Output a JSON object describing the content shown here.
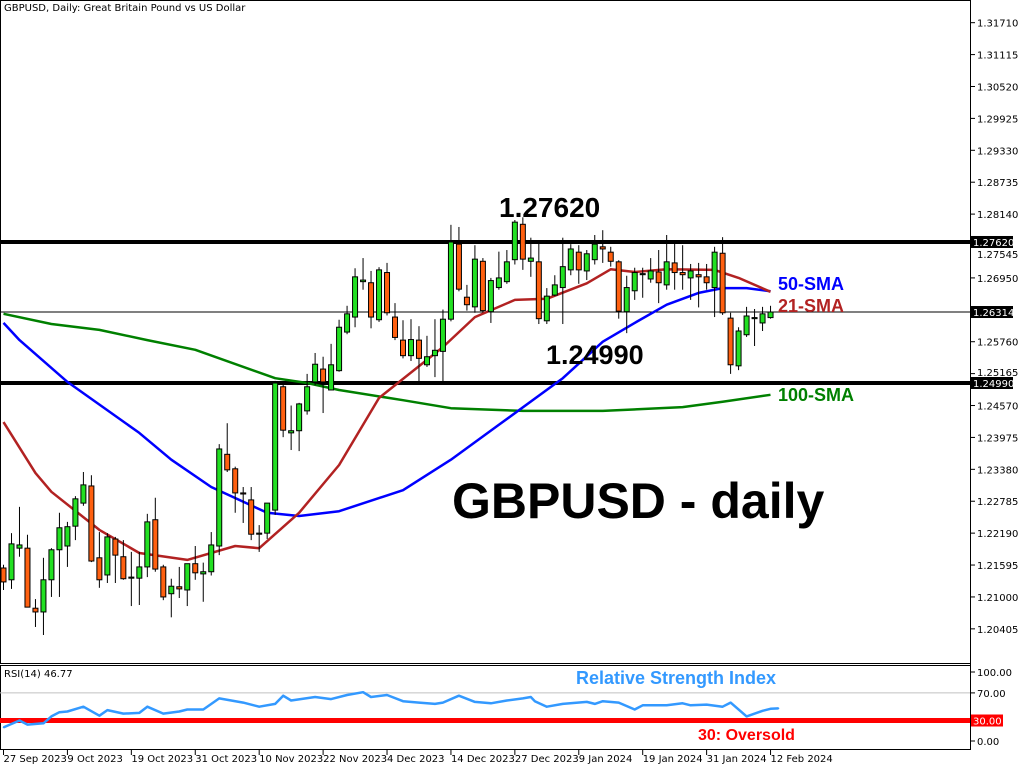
{
  "title": "GBPUSD, Daily:  Great Britain Pound vs US Dollar",
  "annotations": {
    "resistance_label": "1.27620",
    "support_label": "1.24990",
    "main_label": "GBPUSD - daily",
    "sma50_label": "50-SMA",
    "sma21_label": "21-SMA",
    "sma100_label": "100-SMA",
    "rsi_label": "Relative Strength Index",
    "oversold_label": "30: Oversold"
  },
  "colors": {
    "bull": "#22e022",
    "bear": "#ff6010",
    "sma50": "#0000ff",
    "sma21": "#b22222",
    "sma100": "#008000",
    "rsi": "#3399ff",
    "oversold": "#ff0000"
  },
  "chart_data": [
    {
      "type": "candlestick",
      "symbol": "GBPUSD",
      "timeframe": "Daily",
      "ylim": [
        1.1968,
        1.3205
      ],
      "yticks": [
        "1.31710",
        "1.31115",
        "1.30520",
        "1.29925",
        "1.29330",
        "1.28735",
        "1.28140",
        "1.27545",
        "1.26950",
        "1.25760",
        "1.25165",
        "1.24570",
        "1.23975",
        "1.23380",
        "1.22785",
        "1.22190",
        "1.21595",
        "1.21000",
        "1.20405"
      ],
      "highlighted_levels": [
        {
          "value": 1.2762,
          "label": "1.27620",
          "kind": "resistance"
        },
        {
          "value": 1.26314,
          "label": "1.26314",
          "kind": "current"
        },
        {
          "value": 1.2499,
          "label": "1.24990",
          "kind": "support"
        }
      ],
      "xticks": [
        {
          "bar": 0,
          "label": "27 Sep 2023"
        },
        {
          "bar": 8,
          "label": "9 Oct 2023"
        },
        {
          "bar": 16,
          "label": "19 Oct 2023"
        },
        {
          "bar": 24,
          "label": "31 Oct 2023"
        },
        {
          "bar": 32,
          "label": "10 Nov 2023"
        },
        {
          "bar": 40,
          "label": "22 Nov 2023"
        },
        {
          "bar": 48,
          "label": "4 Dec 2023"
        },
        {
          "bar": 56,
          "label": "14 Dec 2023"
        },
        {
          "bar": 64,
          "label": "27 Dec 2023"
        },
        {
          "bar": 72,
          "label": "9 Jan 2024"
        },
        {
          "bar": 80,
          "label": "19 Jan 2024"
        },
        {
          "bar": 88,
          "label": "31 Jan 2024"
        },
        {
          "bar": 96,
          "label": "12 Feb 2024"
        }
      ],
      "ohlc_fields": [
        "open",
        "high",
        "low",
        "close"
      ],
      "candles": [
        [
          1.2154,
          1.216,
          1.2113,
          1.2128
        ],
        [
          1.2132,
          1.2219,
          1.2115,
          1.2199
        ],
        [
          1.2191,
          1.2268,
          1.2175,
          1.2197
        ],
        [
          1.2191,
          1.2216,
          1.2081,
          1.2081
        ],
        [
          1.2079,
          1.2096,
          1.2044,
          1.2072
        ],
        [
          1.2072,
          1.2173,
          1.2029,
          1.2132
        ],
        [
          1.2132,
          1.2191,
          1.21,
          1.2188
        ],
        [
          1.2188,
          1.2257,
          1.21,
          1.2229
        ],
        [
          1.2195,
          1.224,
          1.2156,
          1.2231
        ],
        [
          1.2232,
          1.2288,
          1.2206,
          1.2283
        ],
        [
          1.2275,
          1.2333,
          1.227,
          1.2309
        ],
        [
          1.2307,
          1.2327,
          1.2165,
          1.2167
        ],
        [
          1.2173,
          1.2221,
          1.2117,
          1.2132
        ],
        [
          1.2141,
          1.2219,
          1.2126,
          1.2212
        ],
        [
          1.2208,
          1.2212,
          1.2126,
          1.2178
        ],
        [
          1.2175,
          1.2206,
          1.2132,
          1.2134
        ],
        [
          1.2135,
          1.2184,
          1.2083,
          1.2137
        ],
        [
          1.2135,
          1.2184,
          1.2085,
          1.2156
        ],
        [
          1.2156,
          1.2255,
          1.2137,
          1.224
        ],
        [
          1.2244,
          1.2285,
          1.2147,
          1.2152
        ],
        [
          1.2156,
          1.216,
          1.2094,
          1.21
        ],
        [
          1.2106,
          1.2134,
          1.2062,
          1.212
        ],
        [
          1.2119,
          1.2156,
          1.2098,
          1.2115
        ],
        [
          1.2113,
          1.2162,
          1.2083,
          1.2162
        ],
        [
          1.2162,
          1.2195,
          1.2132,
          1.2145
        ],
        [
          1.2143,
          1.2164,
          1.2091,
          1.2147
        ],
        [
          1.2147,
          1.2221,
          1.214,
          1.2197
        ],
        [
          1.2195,
          1.2385,
          1.2178,
          1.2376
        ],
        [
          1.2366,
          1.2424,
          1.2333,
          1.2337
        ],
        [
          1.2339,
          1.2343,
          1.2257,
          1.2294
        ],
        [
          1.2294,
          1.2305,
          1.2238,
          1.2292
        ],
        [
          1.2281,
          1.2305,
          1.2206,
          1.2217
        ],
        [
          1.2217,
          1.2234,
          1.2184,
          1.2219
        ],
        [
          1.2219,
          1.2275,
          1.2208,
          1.2275
        ],
        [
          1.2262,
          1.2503,
          1.2253,
          1.2499
        ],
        [
          1.2492,
          1.2499,
          1.2398,
          1.2411
        ],
        [
          1.2406,
          1.2457,
          1.2374,
          1.241
        ],
        [
          1.241,
          1.2462,
          1.2372,
          1.246
        ],
        [
          1.2447,
          1.2516,
          1.244,
          1.2492
        ],
        [
          1.2501,
          1.2555,
          1.2495,
          1.2534
        ],
        [
          1.2525,
          1.2548,
          1.2443,
          1.2501
        ],
        [
          1.2486,
          1.2572,
          1.2486,
          1.2533
        ],
        [
          1.2522,
          1.2617,
          1.252,
          1.2603
        ],
        [
          1.2594,
          1.2643,
          1.259,
          1.2628
        ],
        [
          1.2622,
          1.2713,
          1.2603,
          1.2697
        ],
        [
          1.2688,
          1.2732,
          1.2673,
          1.2691
        ],
        [
          1.2686,
          1.2708,
          1.2601,
          1.2622
        ],
        [
          1.2617,
          1.2715,
          1.2613,
          1.271
        ],
        [
          1.2705,
          1.2723,
          1.2625,
          1.263
        ],
        [
          1.2622,
          1.2648,
          1.2579,
          1.2584
        ],
        [
          1.2579,
          1.2616,
          1.2545,
          1.255
        ],
        [
          1.255,
          1.2618,
          1.254,
          1.258
        ],
        [
          1.2579,
          1.2605,
          1.2501,
          1.2545
        ],
        [
          1.2533,
          1.2587,
          1.2529,
          1.2548
        ],
        [
          1.255,
          1.2618,
          1.251,
          1.256
        ],
        [
          1.2558,
          1.2636,
          1.2501,
          1.2618
        ],
        [
          1.2618,
          1.2794,
          1.2614,
          1.2762
        ],
        [
          1.2758,
          1.279,
          1.267,
          1.2674
        ],
        [
          1.2659,
          1.2682,
          1.2634,
          1.2645
        ],
        [
          1.2641,
          1.2756,
          1.263,
          1.273
        ],
        [
          1.2726,
          1.2732,
          1.2632,
          1.2634
        ],
        [
          1.2632,
          1.2695,
          1.2611,
          1.269
        ],
        [
          1.2677,
          1.2744,
          1.2673,
          1.2695
        ],
        [
          1.2688,
          1.2747,
          1.2684,
          1.2725
        ],
        [
          1.2729,
          1.2803,
          1.272,
          1.2799
        ],
        [
          1.2795,
          1.2808,
          1.271,
          1.273
        ],
        [
          1.2726,
          1.277,
          1.2697,
          1.2732
        ],
        [
          1.2725,
          1.276,
          1.2609,
          1.2619
        ],
        [
          1.2615,
          1.2676,
          1.2609,
          1.2661
        ],
        [
          1.2663,
          1.27,
          1.2661,
          1.2682
        ],
        [
          1.2677,
          1.277,
          1.2609,
          1.2716
        ],
        [
          1.271,
          1.2758,
          1.27,
          1.2749
        ],
        [
          1.2743,
          1.2756,
          1.2684,
          1.271
        ],
        [
          1.2708,
          1.2747,
          1.2691,
          1.274
        ],
        [
          1.2729,
          1.2775,
          1.272,
          1.2758
        ],
        [
          1.2753,
          1.2784,
          1.2723,
          1.2749
        ],
        [
          1.2743,
          1.2753,
          1.2716,
          1.2726
        ],
        [
          1.2725,
          1.2728,
          1.2619,
          1.2633
        ],
        [
          1.2632,
          1.2699,
          1.2592,
          1.2677
        ],
        [
          1.2671,
          1.2714,
          1.2654,
          1.2705
        ],
        [
          1.2701,
          1.2714,
          1.2658,
          1.2703
        ],
        [
          1.2693,
          1.2732,
          1.2686,
          1.2708
        ],
        [
          1.2706,
          1.2747,
          1.2648,
          1.2686
        ],
        [
          1.2682,
          1.2775,
          1.2673,
          1.2725
        ],
        [
          1.2723,
          1.276,
          1.2673,
          1.2705
        ],
        [
          1.2705,
          1.2756,
          1.2673,
          1.2701
        ],
        [
          1.2695,
          1.2721,
          1.2654,
          1.2708
        ],
        [
          1.2701,
          1.2723,
          1.264,
          1.2697
        ],
        [
          1.2697,
          1.2721,
          1.2673,
          1.2686
        ],
        [
          1.2677,
          1.2753,
          1.2622,
          1.2743
        ],
        [
          1.2741,
          1.2771,
          1.2626,
          1.263
        ],
        [
          1.262,
          1.263,
          1.2516,
          1.2533
        ],
        [
          1.2531,
          1.2603,
          1.2523,
          1.2596
        ],
        [
          1.2589,
          1.2641,
          1.2585,
          1.2624
        ],
        [
          1.2619,
          1.2637,
          1.2568,
          1.2621
        ],
        [
          1.2611,
          1.2641,
          1.2596,
          1.2628
        ],
        [
          1.2621,
          1.2643,
          1.2619,
          1.26314
        ]
      ],
      "moving_averages": [
        {
          "name": "21-SMA",
          "points": [
            [
              0,
              1.2426
            ],
            [
              4,
              1.2331
            ],
            [
              6,
              1.2296
            ],
            [
              12,
              1.2225
            ],
            [
              17,
              1.2182
            ],
            [
              23,
              1.2169
            ],
            [
              29,
              1.2195
            ],
            [
              32,
              1.2191
            ],
            [
              37,
              1.2257
            ],
            [
              42,
              1.2346
            ],
            [
              47,
              1.2471
            ],
            [
              55,
              1.2566
            ],
            [
              59,
              1.2622
            ],
            [
              64,
              1.2654
            ],
            [
              68,
              1.2656
            ],
            [
              73,
              1.2685
            ],
            [
              76,
              1.2711
            ],
            [
              79,
              1.2706
            ],
            [
              83,
              1.2711
            ],
            [
              89,
              1.271
            ],
            [
              92,
              1.2695
            ],
            [
              96,
              1.2669
            ]
          ]
        },
        {
          "name": "50-SMA",
          "points": [
            [
              0,
              1.2611
            ],
            [
              2,
              1.2579
            ],
            [
              8,
              1.2501
            ],
            [
              17,
              1.2406
            ],
            [
              21,
              1.2356
            ],
            [
              26,
              1.2305
            ],
            [
              33,
              1.2257
            ],
            [
              37,
              1.2251
            ],
            [
              42,
              1.226
            ],
            [
              50,
              1.2299
            ],
            [
              56,
              1.2356
            ],
            [
              62,
              1.2421
            ],
            [
              70,
              1.2508
            ],
            [
              75,
              1.2576
            ],
            [
              79,
              1.2611
            ],
            [
              83,
              1.2645
            ],
            [
              87,
              1.2667
            ],
            [
              90,
              1.2676
            ],
            [
              93,
              1.2676
            ],
            [
              96,
              1.267
            ]
          ]
        },
        {
          "name": "100-SMA",
          "points": [
            [
              0,
              1.2628
            ],
            [
              6,
              1.2609
            ],
            [
              12,
              1.2598
            ],
            [
              18,
              1.2579
            ],
            [
              24,
              1.2561
            ],
            [
              34,
              1.2508
            ],
            [
              38,
              1.2499
            ],
            [
              42,
              1.2486
            ],
            [
              50,
              1.2467
            ],
            [
              56,
              1.2452
            ],
            [
              65,
              1.2447
            ],
            [
              75,
              1.2447
            ],
            [
              85,
              1.2454
            ],
            [
              90,
              1.2464
            ],
            [
              96,
              1.2477
            ]
          ]
        }
      ]
    },
    {
      "type": "line",
      "title": "RSI(14) 46.77",
      "ylim": [
        0,
        100
      ],
      "yticks": [
        "100.00",
        "70.00",
        "30.00",
        "0.00"
      ],
      "levels": [
        70,
        30
      ],
      "points": [
        [
          0,
          20
        ],
        [
          2,
          30
        ],
        [
          3,
          24
        ],
        [
          5,
          26
        ],
        [
          6,
          36
        ],
        [
          7,
          42
        ],
        [
          8,
          43
        ],
        [
          10,
          50
        ],
        [
          12,
          37
        ],
        [
          13,
          45
        ],
        [
          15,
          40
        ],
        [
          17,
          41
        ],
        [
          18,
          50
        ],
        [
          20,
          40
        ],
        [
          22,
          43
        ],
        [
          23,
          46
        ],
        [
          25,
          46
        ],
        [
          27,
          62
        ],
        [
          30,
          56
        ],
        [
          32,
          50
        ],
        [
          34,
          54
        ],
        [
          35,
          66
        ],
        [
          36,
          59
        ],
        [
          39,
          64
        ],
        [
          41,
          61
        ],
        [
          43,
          67
        ],
        [
          45,
          71
        ],
        [
          46,
          64
        ],
        [
          48,
          67
        ],
        [
          50,
          58
        ],
        [
          52,
          56
        ],
        [
          54,
          54
        ],
        [
          55,
          56
        ],
        [
          57,
          66
        ],
        [
          59,
          57
        ],
        [
          61,
          55
        ],
        [
          63,
          59
        ],
        [
          65,
          62
        ],
        [
          66,
          64
        ],
        [
          66.5,
          58
        ],
        [
          68,
          50
        ],
        [
          70,
          54
        ],
        [
          73,
          57
        ],
        [
          74,
          54
        ],
        [
          75,
          58
        ],
        [
          77,
          56
        ],
        [
          79,
          46
        ],
        [
          80,
          52
        ],
        [
          83,
          52
        ],
        [
          85,
          55
        ],
        [
          86,
          52
        ],
        [
          88,
          53
        ],
        [
          90,
          50
        ],
        [
          91,
          56
        ],
        [
          93,
          36
        ],
        [
          95,
          44
        ],
        [
          96,
          47
        ],
        [
          97,
          47.6
        ]
      ]
    }
  ]
}
